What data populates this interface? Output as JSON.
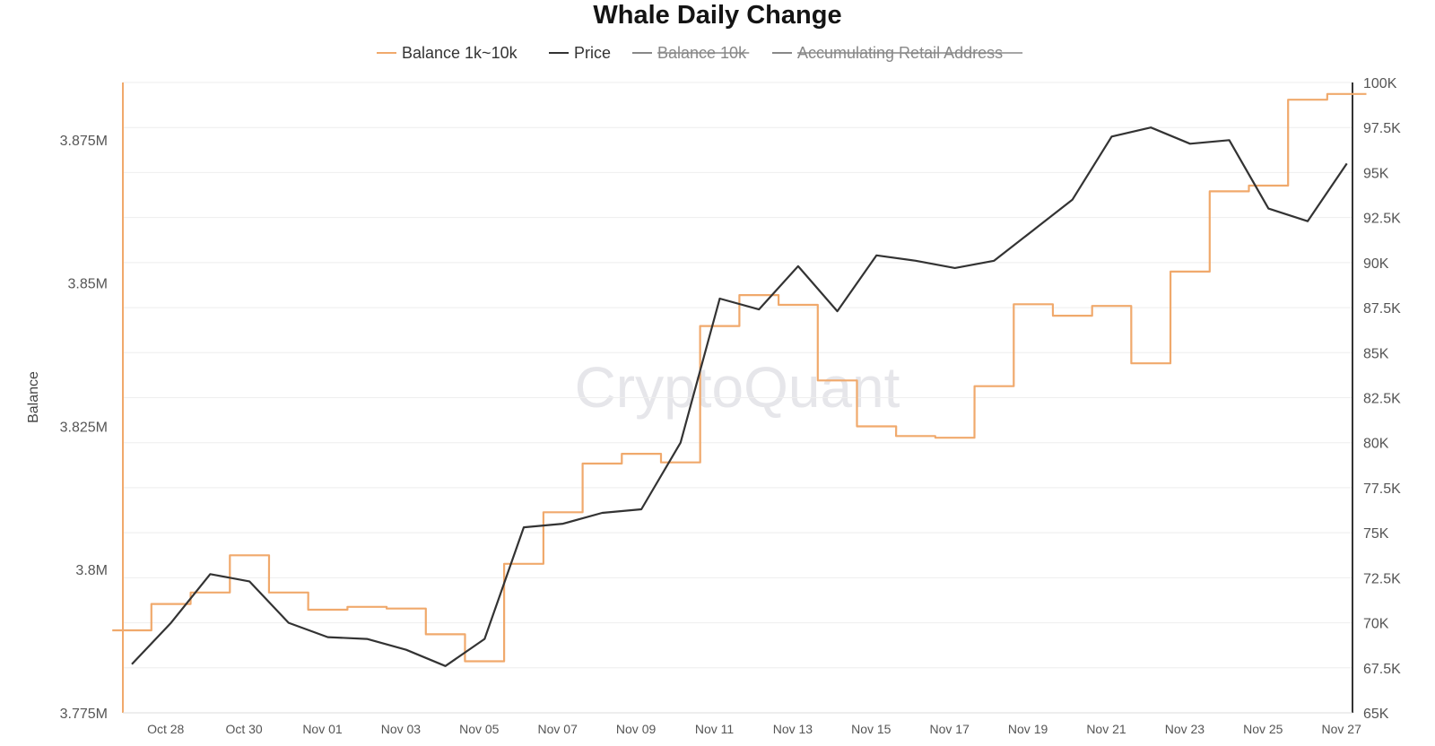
{
  "chart_data": {
    "type": "line",
    "title": "Whale Daily Change",
    "watermark": "CryptoQuant",
    "ylabel_left": "Balance",
    "ylabel_right": "",
    "legend_position": "top-center",
    "legend": [
      {
        "name": "Balance 1k~10k",
        "color": "#f0a96c",
        "disabled": false
      },
      {
        "name": "Price",
        "color": "#333333",
        "disabled": false
      },
      {
        "name": "Balance 10k",
        "color": "#888888",
        "disabled": true
      },
      {
        "name": "Accumulating Retail Address",
        "color": "#888888",
        "disabled": true
      }
    ],
    "x_tick_labels": [
      "Oct 28",
      "Oct 30",
      "Nov 01",
      "Nov 03",
      "Nov 05",
      "Nov 07",
      "Nov 09",
      "Nov 11",
      "Nov 13",
      "Nov 15",
      "Nov 17",
      "Nov 19",
      "Nov 21",
      "Nov 23",
      "Nov 25",
      "Nov 27"
    ],
    "y_left": {
      "min": 3775000,
      "max": 3885000,
      "ticks": [
        3775000,
        3800000,
        3825000,
        3850000,
        3875000
      ],
      "tick_labels": [
        "3.775M",
        "3.8M",
        "3.825M",
        "3.85M",
        "3.875M"
      ]
    },
    "y_right": {
      "min": 65000,
      "max": 100000,
      "ticks": [
        65000,
        67500,
        70000,
        72500,
        75000,
        77500,
        80000,
        82500,
        85000,
        87500,
        90000,
        92500,
        95000,
        97500,
        100000
      ],
      "tick_labels": [
        "65K",
        "67.5K",
        "70K",
        "72.5K",
        "75K",
        "77.5K",
        "80K",
        "82.5K",
        "85K",
        "87.5K",
        "90K",
        "92.5K",
        "95K",
        "97.5K",
        "100K"
      ]
    },
    "grid": true,
    "series": [
      {
        "name": "Balance 1k~10k",
        "axis": "left",
        "step": true,
        "color": "#f0a96c",
        "x": [
          "Oct 27",
          "Oct 28",
          "Oct 29",
          "Oct 30",
          "Oct 31",
          "Nov 01",
          "Nov 02",
          "Nov 03",
          "Nov 04",
          "Nov 05",
          "Nov 06",
          "Nov 07",
          "Nov 08",
          "Nov 09",
          "Nov 10",
          "Nov 11",
          "Nov 12",
          "Nov 13",
          "Nov 14",
          "Nov 15",
          "Nov 16",
          "Nov 17",
          "Nov 18",
          "Nov 19",
          "Nov 20",
          "Nov 21",
          "Nov 22",
          "Nov 23",
          "Nov 24",
          "Nov 25",
          "Nov 26",
          "Nov 27"
        ],
        "values": [
          3789400,
          3794000,
          3796000,
          3802500,
          3796000,
          3793000,
          3793500,
          3793200,
          3788700,
          3784000,
          3801000,
          3810000,
          3818500,
          3820200,
          3818700,
          3842500,
          3847900,
          3846200,
          3833000,
          3825000,
          3823300,
          3823000,
          3832000,
          3846300,
          3844300,
          3846000,
          3836000,
          3852000,
          3866000,
          3867000,
          3882000,
          3883000
        ]
      },
      {
        "name": "Price",
        "axis": "right",
        "step": false,
        "color": "#333333",
        "x": [
          "Oct 27",
          "Oct 28",
          "Oct 29",
          "Oct 30",
          "Oct 31",
          "Nov 01",
          "Nov 02",
          "Nov 03",
          "Nov 04",
          "Nov 05",
          "Nov 06",
          "Nov 07",
          "Nov 08",
          "Nov 09",
          "Nov 10",
          "Nov 11",
          "Nov 12",
          "Nov 13",
          "Nov 14",
          "Nov 15",
          "Nov 16",
          "Nov 17",
          "Nov 18",
          "Nov 19",
          "Nov 20",
          "Nov 21",
          "Nov 22",
          "Nov 23",
          "Nov 24",
          "Nov 25",
          "Nov 26",
          "Nov 27"
        ],
        "values": [
          67700,
          70000,
          72700,
          72300,
          70000,
          69200,
          69100,
          68500,
          67600,
          69100,
          75300,
          75500,
          76100,
          76300,
          80000,
          88000,
          87400,
          89800,
          87300,
          90400,
          90100,
          89700,
          90100,
          91800,
          93500,
          97000,
          97500,
          96600,
          96800,
          93000,
          92300,
          95500
        ]
      }
    ]
  }
}
